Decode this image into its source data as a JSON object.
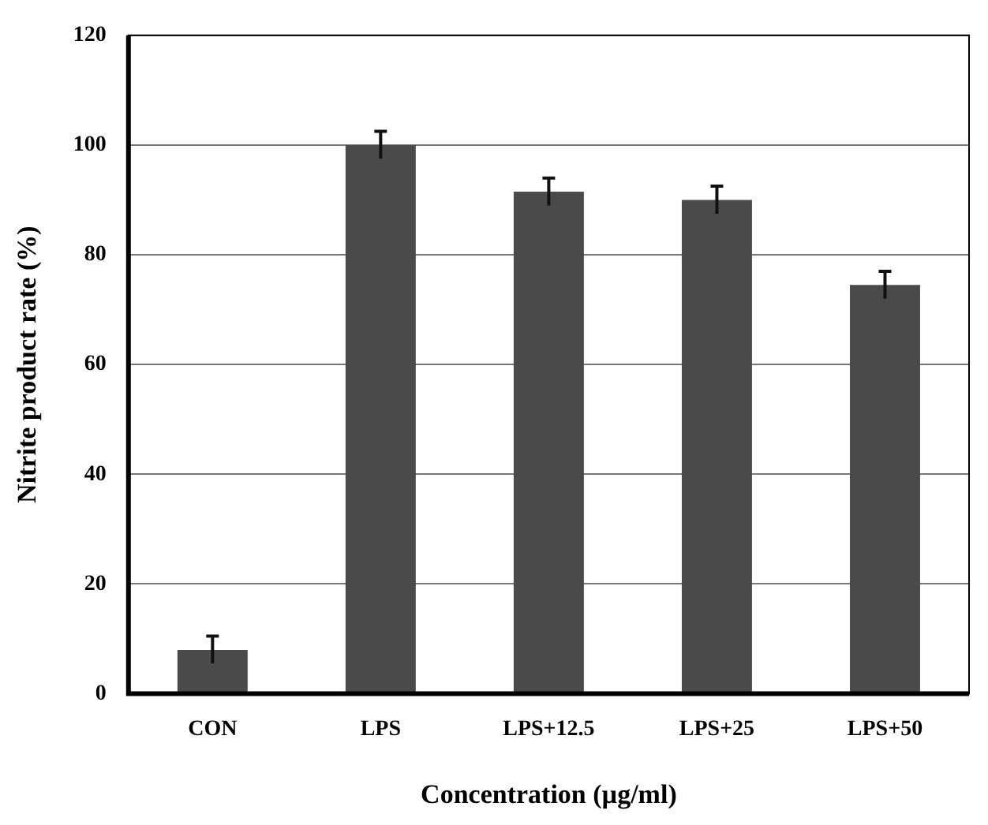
{
  "chart_data": {
    "type": "bar",
    "xlabel": "Concentration (µg/ml)",
    "ylabel": "Nitrite product rate (%)",
    "categories": [
      "CON",
      "LPS",
      "LPS+12.5",
      "LPS+25",
      "LPS+50"
    ],
    "values": [
      8,
      100,
      91.5,
      90,
      74.5
    ],
    "errors": [
      2.5,
      2.5,
      2.5,
      2.5,
      2.5
    ],
    "color": "#4a4a4a",
    "ylim": [
      0,
      120
    ],
    "yticks": [
      0,
      20,
      40,
      60,
      80,
      100,
      120
    ],
    "grid": "y"
  }
}
